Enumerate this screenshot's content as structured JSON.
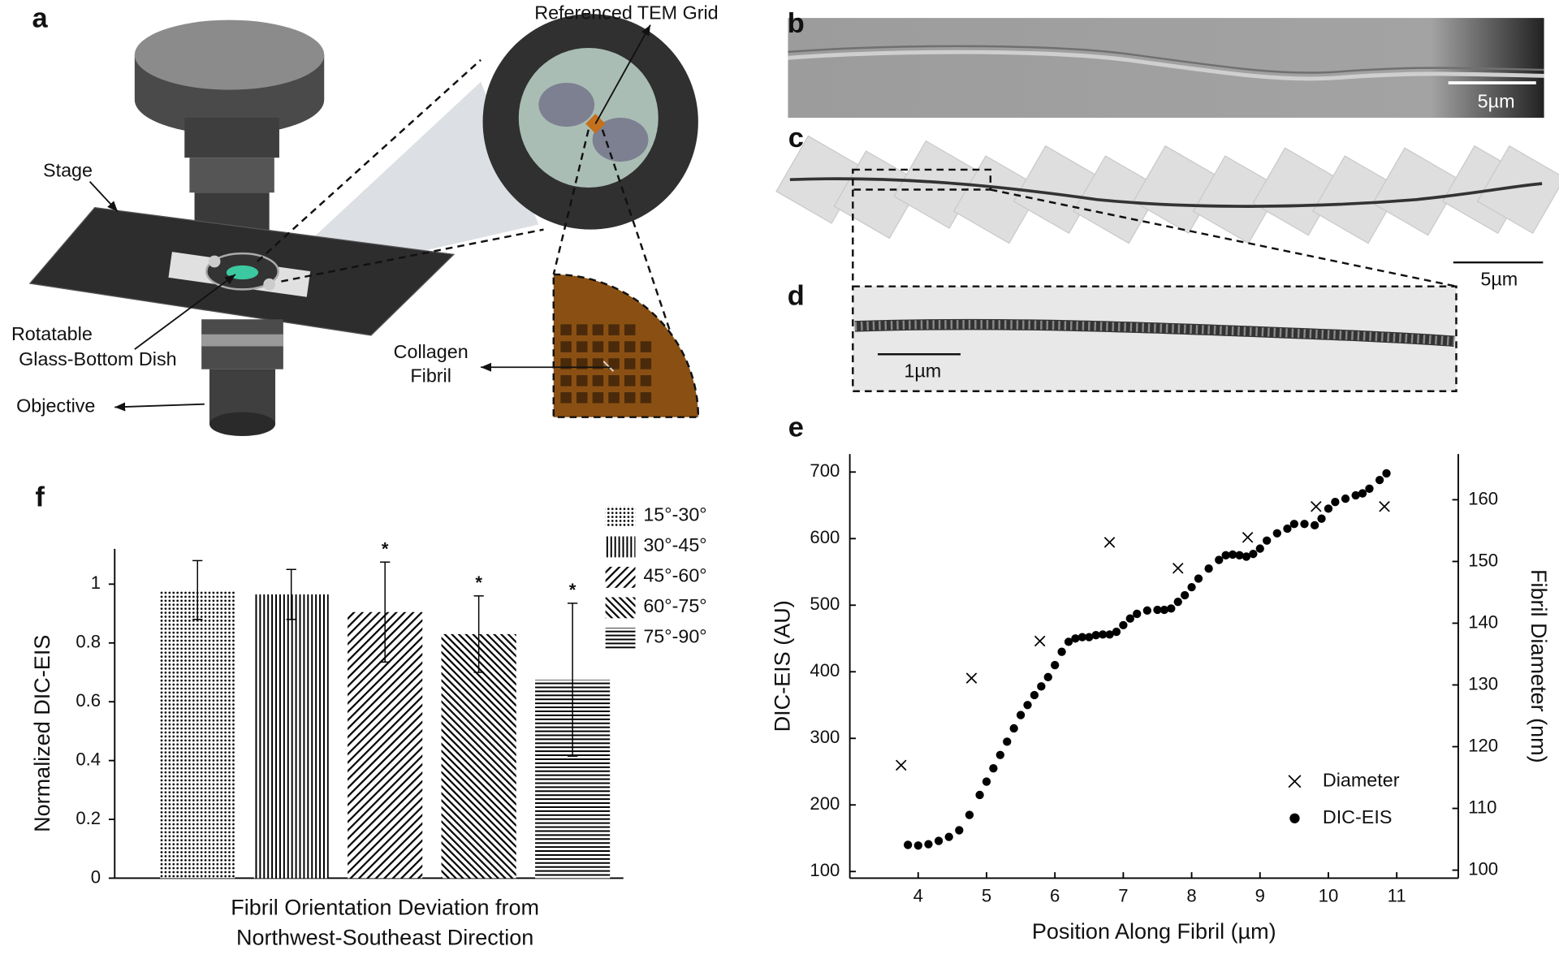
{
  "panel_labels": [
    "a",
    "b",
    "c",
    "d",
    "e",
    "f"
  ],
  "figure_a": {
    "grid_label": "Referenced TEM Grid",
    "stage": "Stage",
    "dish": [
      "Rotatable",
      "Glass-Bottom Dish"
    ],
    "objective": "Objective",
    "fibril": [
      "Collagen",
      "Fibril"
    ]
  },
  "scale_bars": {
    "b": "5µm",
    "c": "5µm",
    "d": "1µm"
  },
  "chart_data": [
    {
      "type": "bar",
      "ylabel": "Normalized DIC-EIS",
      "xlabel": [
        "Fibril Orientation Deviation from",
        "Northwest-Southeast Direction"
      ],
      "categories": [
        "15°-30°",
        "30°-45°",
        "45°-60°",
        "60°-75°",
        "75°-90°"
      ],
      "values": [
        0.98,
        0.965,
        0.905,
        0.83,
        0.675
      ],
      "errors": [
        0.1,
        0.085,
        0.17,
        0.13,
        0.26
      ],
      "annotations": [
        null,
        null,
        "*",
        "*",
        "*"
      ],
      "patterns": [
        "dots",
        "vertical",
        "back-diagonal",
        "diagonal",
        "horizontal"
      ],
      "color": "#000000",
      "ylim": [
        0,
        1.12
      ],
      "yticks": [
        0,
        0.2,
        0.4,
        0.6,
        0.8,
        1
      ],
      "legend": "upper right"
    },
    {
      "type": "scatter",
      "xlabel": "Position Along Fibril (µm)",
      "ylabel": "DIC-EIS (AU)",
      "y2label": "Fibril Diameter (nm)",
      "xlim": [
        3,
        11.9
      ],
      "xticks": [
        4,
        5,
        6,
        7,
        8,
        9,
        10,
        11
      ],
      "ylim": [
        90,
        727
      ],
      "yticks": [
        100,
        200,
        300,
        400,
        500,
        600,
        700
      ],
      "y2lim": [
        98.7,
        167.4
      ],
      "y2ticks": [
        100,
        110,
        120,
        130,
        140,
        150,
        160
      ],
      "legend": "lower right",
      "series": [
        {
          "name": "Diameter",
          "marker": "x",
          "color": "#000000",
          "axis": "y2",
          "x": [
            3.75,
            4.78,
            5.78,
            6.8,
            7.8,
            8.82,
            9.82,
            10.82
          ],
          "values": [
            117.0,
            131.1,
            137.1,
            153.1,
            148.9,
            153.9,
            158.9,
            158.9
          ]
        },
        {
          "name": "DIC-EIS",
          "marker": "circle",
          "color": "#000000",
          "axis": "y",
          "x": [
            3.85,
            4.0,
            4.15,
            4.3,
            4.45,
            4.6,
            4.75,
            4.9,
            5.0,
            5.1,
            5.2,
            5.3,
            5.4,
            5.5,
            5.6,
            5.7,
            5.8,
            5.9,
            6.0,
            6.1,
            6.2,
            6.3,
            6.4,
            6.5,
            6.6,
            6.7,
            6.8,
            6.9,
            7.0,
            7.1,
            7.2,
            7.35,
            7.5,
            7.6,
            7.7,
            7.8,
            7.9,
            8.0,
            8.1,
            8.25,
            8.4,
            8.5,
            8.6,
            8.7,
            8.8,
            8.9,
            9.0,
            9.1,
            9.25,
            9.4,
            9.5,
            9.65,
            9.8,
            9.9,
            10.0,
            10.1,
            10.25,
            10.4,
            10.5,
            10.6,
            10.75,
            10.85
          ],
          "values": [
            140,
            139,
            141,
            146,
            152,
            162,
            185,
            215,
            235,
            255,
            275,
            295,
            315,
            335,
            350,
            365,
            378,
            392,
            410,
            430,
            445,
            450,
            452,
            452,
            455,
            456,
            456,
            460,
            470,
            480,
            487,
            492,
            493,
            493,
            495,
            505,
            515,
            527,
            540,
            555,
            568,
            575,
            576,
            575,
            573,
            577,
            585,
            597,
            608,
            615,
            622,
            622,
            620,
            630,
            645,
            655,
            660,
            665,
            668,
            675,
            688,
            698
          ]
        }
      ]
    }
  ]
}
